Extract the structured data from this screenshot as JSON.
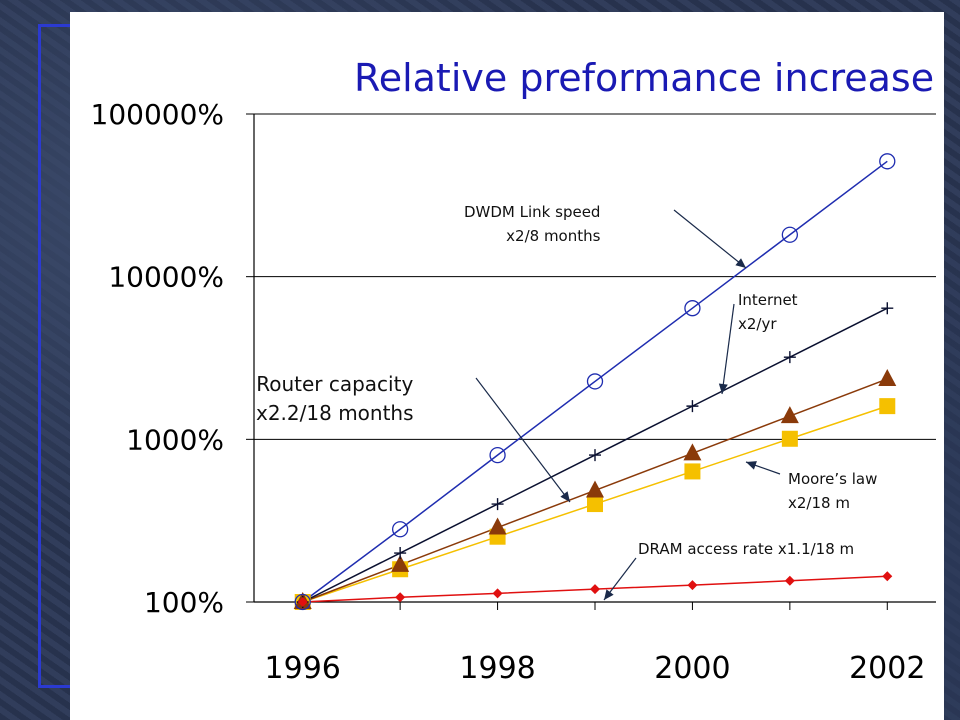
{
  "chart_data": {
    "type": "line",
    "title": "Relative preformance increase",
    "x": [
      1996,
      1997,
      1998,
      1999,
      2000,
      2001,
      2002
    ],
    "x_ticks": [
      "1996",
      "1998",
      "2000",
      "2002"
    ],
    "x_range": [
      1995.5,
      2002.5
    ],
    "y_scale": "log",
    "y_range": [
      100,
      100000
    ],
    "y_ticks": [
      "100%",
      "1000%",
      "10000%",
      "100000%"
    ],
    "grid": "horizontal",
    "series": [
      {
        "name": "DWDM Link speed x2/8 months",
        "color": "#1f2db0",
        "marker": "circle",
        "values": [
          100,
          280,
          800,
          2270,
          6400,
          18100,
          51200
        ]
      },
      {
        "name": "Internet x2/yr",
        "color": "#0a1030",
        "marker": "plus",
        "values": [
          100,
          200,
          400,
          800,
          1600,
          3200,
          6400
        ]
      },
      {
        "name": "Router capacity x2.2/18 months",
        "color": "#8a3a0a",
        "marker": "triangle",
        "values": [
          100,
          169,
          287,
          485,
          820,
          1390,
          2350
        ]
      },
      {
        "name": "Moore’s law x2/18 m",
        "color": "#f5c000",
        "marker": "square",
        "values": [
          100,
          159,
          252,
          400,
          635,
          1008,
          1600
        ]
      },
      {
        "name": "DRAM access rate x1.1/18 m",
        "color": "#e01010",
        "marker": "diamond",
        "values": [
          100,
          107,
          113,
          120,
          127,
          135,
          144
        ]
      }
    ],
    "annotations": [
      {
        "text": "DWDM Link speed\nx2/8 months"
      },
      {
        "text": "Internet\nx2/yr"
      },
      {
        "text": "Router capacity\nx2.2/18 months"
      },
      {
        "text": "Moore’s law\nx2/18 m"
      },
      {
        "text": "DRAM access rate x1.1/18  m"
      }
    ]
  }
}
